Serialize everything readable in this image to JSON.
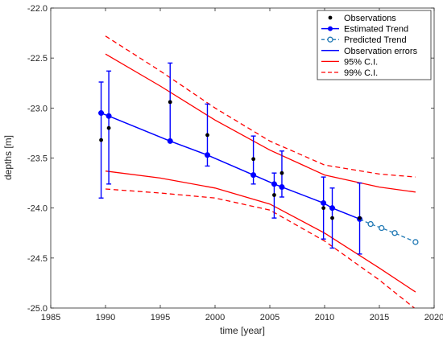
{
  "chart_data": {
    "type": "line",
    "xlabel": "time [year]",
    "ylabel": "depths [m]",
    "xlim": [
      1985,
      2020
    ],
    "ylim": [
      -25.0,
      -22.0
    ],
    "xticks": [
      1985,
      1990,
      1995,
      2000,
      2005,
      2010,
      2015,
      2020
    ],
    "yticks": [
      -22.0,
      -22.5,
      -23.0,
      -23.5,
      -24.0,
      -24.5,
      -25.0
    ],
    "xtick_labels": [
      "1985",
      "1990",
      "1995",
      "2000",
      "2005",
      "2010",
      "2015",
      "2020"
    ],
    "ytick_labels": [
      "-22.0",
      "-22.5",
      "-23.0",
      "-23.5",
      "-24.0",
      "-24.5",
      "-25.0"
    ],
    "legend_position": "top-right",
    "colors": {
      "blue": "#0000ff",
      "red": "#ff0000",
      "dashed_blue": "#1f78b4",
      "black": "#000000"
    },
    "series": [
      {
        "name": "Observations",
        "style": "black-dots",
        "x": [
          1989.6,
          1990.3,
          1995.9,
          1999.3,
          2003.5,
          2005.4,
          2006.1,
          2009.9,
          2010.7,
          2013.2
        ],
        "y": [
          -23.32,
          -23.2,
          -22.94,
          -23.27,
          -23.51,
          -23.87,
          -23.65,
          -24.0,
          -24.1,
          -24.1
        ]
      },
      {
        "name": "Estimated Trend",
        "style": "blue-line-circles",
        "x": [
          1989.6,
          1990.3,
          1995.9,
          1999.3,
          2003.5,
          2005.4,
          2006.1,
          2009.9,
          2010.7,
          2013.2
        ],
        "y": [
          -23.05,
          -23.08,
          -23.33,
          -23.47,
          -23.67,
          -23.76,
          -23.79,
          -23.95,
          -24.0,
          -24.11
        ]
      },
      {
        "name": "Predicted Trend",
        "style": "dashed-blue-circles",
        "x": [
          2013.2,
          2014.2,
          2015.2,
          2016.4,
          2018.3
        ],
        "y": [
          -24.11,
          -24.16,
          -24.2,
          -24.25,
          -24.34
        ]
      },
      {
        "name": "Observation errors",
        "style": "blue-errorbars",
        "x": [
          1989.6,
          1990.3,
          1995.9,
          1999.3,
          2003.5,
          2005.4,
          2006.1,
          2009.9,
          2010.7,
          2013.2
        ],
        "y_low": [
          -23.9,
          -23.76,
          -23.33,
          -23.58,
          -23.76,
          -24.1,
          -23.89,
          -24.31,
          -24.4,
          -24.46
        ],
        "y_high": [
          -22.74,
          -22.63,
          -22.55,
          -22.96,
          -23.28,
          -23.65,
          -23.43,
          -23.69,
          -23.8,
          -23.75
        ]
      },
      {
        "name": "95% C.I.",
        "style": "red-solid",
        "upper": {
          "x": [
            1990,
            1995,
            2000,
            2005,
            2010,
            2015,
            2018.3
          ],
          "y": [
            -22.46,
            -22.78,
            -23.12,
            -23.42,
            -23.67,
            -23.79,
            -23.84
          ]
        },
        "lower": {
          "x": [
            1990,
            1995,
            2000,
            2005,
            2010,
            2015,
            2018.3
          ],
          "y": [
            -23.63,
            -23.7,
            -23.8,
            -23.96,
            -24.25,
            -24.6,
            -24.84
          ]
        }
      },
      {
        "name": "99% C.I.",
        "style": "red-dashed",
        "upper": {
          "x": [
            1990,
            1995,
            2000,
            2005,
            2010,
            2015,
            2018.3
          ],
          "y": [
            -22.28,
            -22.63,
            -23.0,
            -23.33,
            -23.57,
            -23.66,
            -23.69
          ]
        },
        "lower": {
          "x": [
            1990,
            1995,
            2000,
            2005,
            2010,
            2015,
            2018.3
          ],
          "y": [
            -23.81,
            -23.85,
            -23.9,
            -24.02,
            -24.33,
            -24.72,
            -25.01
          ]
        }
      }
    ]
  }
}
